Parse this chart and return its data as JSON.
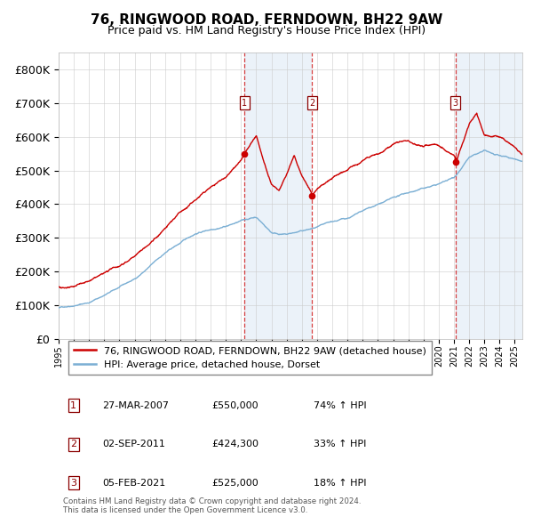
{
  "title": "76, RINGWOOD ROAD, FERNDOWN, BH22 9AW",
  "subtitle": "Price paid vs. HM Land Registry's House Price Index (HPI)",
  "title_fontsize": 11,
  "subtitle_fontsize": 9,
  "red_line_label": "76, RINGWOOD ROAD, FERNDOWN, BH22 9AW (detached house)",
  "blue_line_label": "HPI: Average price, detached house, Dorset",
  "red_color": "#cc0000",
  "blue_color": "#7bafd4",
  "shade_color": "#dce9f5",
  "grid_color": "#cccccc",
  "ylim": [
    0,
    850000
  ],
  "yticks": [
    0,
    100000,
    200000,
    300000,
    400000,
    500000,
    600000,
    700000,
    800000
  ],
  "ytick_labels": [
    "£0",
    "£100K",
    "£200K",
    "£300K",
    "£400K",
    "£500K",
    "£600K",
    "£700K",
    "£800K"
  ],
  "transaction_dates_decimal": [
    2007.23,
    2011.67,
    2021.09
  ],
  "trans_prices": [
    550000,
    424300,
    525000
  ],
  "trans_labels": [
    "1",
    "2",
    "3"
  ],
  "trans_dates_str": [
    "27-MAR-2007",
    "02-SEP-2011",
    "05-FEB-2021"
  ],
  "trans_prices_str": [
    "£550,000",
    "£424,300",
    "£525,000"
  ],
  "trans_hpi_str": [
    "74% ↑ HPI",
    "33% ↑ HPI",
    "18% ↑ HPI"
  ],
  "footnote": "Contains HM Land Registry data © Crown copyright and database right 2024.\nThis data is licensed under the Open Government Licence v3.0.",
  "xmin": 1995.0,
  "xmax": 2025.5,
  "xlabel_fontsize": 7,
  "ylabel_fontsize": 9,
  "legend_fontsize": 8,
  "annotation_fontsize": 7.5
}
